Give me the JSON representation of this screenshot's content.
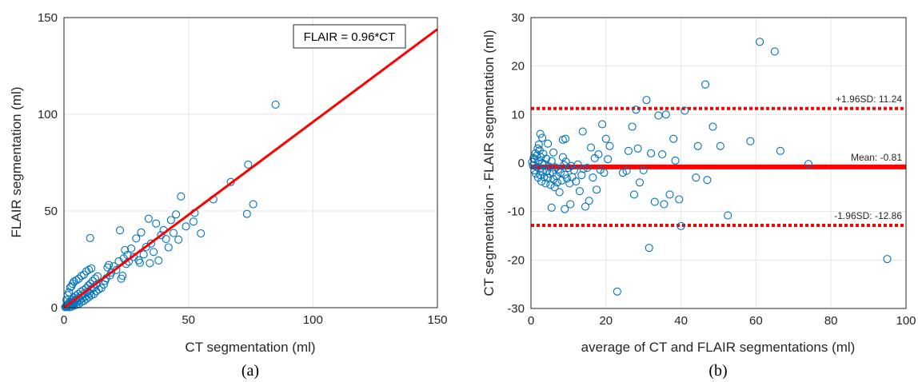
{
  "chart_data": [
    {
      "type": "scatter",
      "panel_label": "(a)",
      "xlabel": "CT segmentation (ml)",
      "ylabel": "FLAIR segmentation (ml)",
      "xlim": [
        0,
        150
      ],
      "ylim": [
        0,
        150
      ],
      "xticks": [
        "0",
        "50",
        "100",
        "150"
      ],
      "yticks": [
        "0",
        "50",
        "100",
        "150"
      ],
      "grid": true,
      "fit_line": {
        "slope": 0.96,
        "color": "#ff0000",
        "legend": "FLAIR = 0.96*CT"
      },
      "marker_color": "#0072bd",
      "points": [
        [
          0.5,
          0.3
        ],
        [
          0.8,
          0.6
        ],
        [
          1.0,
          1.2
        ],
        [
          1.2,
          0.5
        ],
        [
          1.5,
          1.8
        ],
        [
          1.8,
          0.9
        ],
        [
          2.0,
          2.5
        ],
        [
          2.2,
          1.4
        ],
        [
          2.5,
          3.2
        ],
        [
          2.8,
          1.9
        ],
        [
          3.0,
          2.6
        ],
        [
          3.2,
          4.0
        ],
        [
          3.5,
          1.5
        ],
        [
          3.8,
          3.1
        ],
        [
          4.0,
          5.2
        ],
        [
          4.2,
          2.4
        ],
        [
          4.5,
          3.8
        ],
        [
          4.8,
          6.1
        ],
        [
          5.0,
          4.4
        ],
        [
          5.3,
          2.9
        ],
        [
          5.6,
          7.0
        ],
        [
          6.0,
          5.1
        ],
        [
          6.3,
          3.7
        ],
        [
          6.7,
          8.2
        ],
        [
          7.0,
          6.3
        ],
        [
          7.4,
          4.9
        ],
        [
          7.8,
          9.1
        ],
        [
          8.2,
          7.4
        ],
        [
          8.6,
          5.8
        ],
        [
          9.0,
          10.2
        ],
        [
          9.4,
          8.3
        ],
        [
          9.8,
          11.5
        ],
        [
          10.2,
          7.2
        ],
        [
          10.6,
          12.4
        ],
        [
          11.0,
          9.6
        ],
        [
          11.5,
          13.8
        ],
        [
          12.0,
          10.4
        ],
        [
          12.5,
          15.1
        ],
        [
          13.0,
          11.9
        ],
        [
          13.5,
          16.2
        ],
        [
          1.0,
          4.0
        ],
        [
          1.5,
          6.5
        ],
        [
          2.0,
          8.0
        ],
        [
          2.5,
          10.5
        ],
        [
          3.0,
          11.0
        ],
        [
          3.5,
          12.3
        ],
        [
          4.0,
          13.5
        ],
        [
          5.0,
          14.2
        ],
        [
          6.0,
          15.0
        ],
        [
          7.0,
          16.4
        ],
        [
          8.0,
          17.1
        ],
        [
          9.0,
          18.8
        ],
        [
          10.0,
          19.6
        ],
        [
          11.0,
          20.3
        ],
        [
          10.5,
          36.0
        ],
        [
          2.0,
          0.2
        ],
        [
          3.0,
          0.5
        ],
        [
          4.0,
          1.0
        ],
        [
          5.0,
          1.5
        ],
        [
          6.0,
          2.0
        ],
        [
          7.0,
          3.0
        ],
        [
          8.0,
          3.5
        ],
        [
          9.0,
          4.5
        ],
        [
          10.0,
          5.5
        ],
        [
          11.0,
          6.5
        ],
        [
          12.0,
          7.0
        ],
        [
          13.0,
          8.5
        ],
        [
          14.0,
          9.5
        ],
        [
          15.0,
          10.2
        ],
        [
          16.0,
          12.0
        ],
        [
          16.5,
          13.8
        ],
        [
          17.0,
          15.2
        ],
        [
          17.5,
          20.8
        ],
        [
          18.0,
          22.1
        ],
        [
          18.5,
          16.7
        ],
        [
          19.0,
          18.2
        ],
        [
          20.0,
          21.4
        ],
        [
          21.0,
          19.5
        ],
        [
          22.0,
          24.0
        ],
        [
          22.5,
          40.0
        ],
        [
          23.0,
          15.0
        ],
        [
          23.5,
          16.5
        ],
        [
          24.0,
          25.5
        ],
        [
          24.5,
          29.8
        ],
        [
          25.0,
          22.6
        ],
        [
          25.5,
          27.3
        ],
        [
          26.0,
          23.8
        ],
        [
          27.0,
          30.6
        ],
        [
          28.0,
          26.2
        ],
        [
          29.0,
          35.8
        ],
        [
          30.0,
          24.5
        ],
        [
          30.5,
          23.2
        ],
        [
          31.0,
          38.9
        ],
        [
          32.0,
          27.5
        ],
        [
          33.0,
          31.4
        ],
        [
          34.0,
          46.0
        ],
        [
          34.5,
          23.0
        ],
        [
          35.0,
          33.2
        ],
        [
          36.0,
          28.8
        ],
        [
          37.0,
          43.5
        ],
        [
          38.0,
          24.4
        ],
        [
          39.0,
          37.5
        ],
        [
          40.0,
          40.1
        ],
        [
          41.0,
          35.5
        ],
        [
          42.0,
          31.2
        ],
        [
          43.0,
          45.3
        ],
        [
          44.0,
          38.6
        ],
        [
          45.0,
          48.2
        ],
        [
          46.0,
          35.2
        ],
        [
          47.0,
          57.5
        ],
        [
          49.0,
          42.0
        ],
        [
          52.0,
          44.5
        ],
        [
          52.5,
          49.0
        ],
        [
          55.0,
          38.4
        ],
        [
          60.0,
          56.0
        ],
        [
          67.0,
          65.0
        ],
        [
          73.5,
          48.5
        ],
        [
          74.0,
          74.0
        ],
        [
          76.0,
          53.5
        ],
        [
          85.0,
          105.0
        ]
      ]
    },
    {
      "type": "scatter",
      "panel_label": "(b)",
      "xlabel": "average of CT and FLAIR segmentations (ml)",
      "ylabel": "CT segmentation - FLAIR segmentation (ml)",
      "xlim": [
        0,
        100
      ],
      "ylim": [
        -30,
        30
      ],
      "xticks": [
        "0",
        "20",
        "40",
        "60",
        "80",
        "100"
      ],
      "yticks": [
        "-30",
        "-20",
        "-10",
        "0",
        "10",
        "20",
        "30"
      ],
      "grid": true,
      "marker_color": "#0072bd",
      "mean": {
        "value": -0.81,
        "label": "Mean: -0.81",
        "color": "#ff0000"
      },
      "upper_loa": {
        "value": 11.24,
        "label": "+1.96SD: 11.24",
        "color": "#ff0000"
      },
      "lower_loa": {
        "value": -12.86,
        "label": "-1.96SD: -12.86",
        "color": "#ff0000"
      },
      "points": [
        [
          0.3,
          0.2
        ],
        [
          0.5,
          -0.5
        ],
        [
          0.7,
          1.0
        ],
        [
          0.9,
          -1.5
        ],
        [
          1.0,
          0.8
        ],
        [
          1.2,
          2.0
        ],
        [
          1.3,
          -2.2
        ],
        [
          1.5,
          1.5
        ],
        [
          1.6,
          -0.8
        ],
        [
          1.8,
          3.0
        ],
        [
          1.9,
          -3.0
        ],
        [
          2.0,
          0.5
        ],
        [
          2.1,
          3.8
        ],
        [
          2.2,
          -1.2
        ],
        [
          2.3,
          2.6
        ],
        [
          2.5,
          -2.5
        ],
        [
          2.6,
          1.2
        ],
        [
          2.8,
          -3.8
        ],
        [
          3.0,
          0.0
        ],
        [
          3.1,
          -1.8
        ],
        [
          3.3,
          1.9
        ],
        [
          3.5,
          -2.9
        ],
        [
          3.7,
          -0.3
        ],
        [
          3.9,
          -4.2
        ],
        [
          4.1,
          0.9
        ],
        [
          4.3,
          -1.6
        ],
        [
          4.5,
          -3.1
        ],
        [
          4.8,
          -0.7
        ],
        [
          5.0,
          -2.2
        ],
        [
          5.2,
          -4.5
        ],
        [
          5.5,
          0.4
        ],
        [
          5.8,
          -1.9
        ],
        [
          6.0,
          -3.4
        ],
        [
          6.3,
          -5.0
        ],
        [
          6.5,
          -0.9
        ],
        [
          6.8,
          -2.7
        ],
        [
          7.0,
          -4.0
        ],
        [
          7.3,
          -1.3
        ],
        [
          7.6,
          -6.0
        ],
        [
          7.9,
          -2.0
        ],
        [
          8.2,
          -3.6
        ],
        [
          8.5,
          1.2
        ],
        [
          8.8,
          -0.4
        ],
        [
          9.0,
          -2.4
        ],
        [
          9.3,
          0.3
        ],
        [
          9.6,
          -3.2
        ],
        [
          10.0,
          -1.0
        ],
        [
          10.3,
          -4.2
        ],
        [
          10.7,
          -0.6
        ],
        [
          11.0,
          -2.9
        ],
        [
          11.5,
          -1.5
        ],
        [
          12.0,
          -3.8
        ],
        [
          12.5,
          -0.3
        ],
        [
          13.0,
          -5.8
        ],
        [
          13.5,
          -2.5
        ],
        [
          14.0,
          -1.2
        ],
        [
          14.5,
          -9.0
        ],
        [
          15.0,
          -1.0
        ],
        [
          15.5,
          -7.8
        ],
        [
          16.0,
          3.2
        ],
        [
          16.5,
          -3.0
        ],
        [
          17.0,
          1.0
        ],
        [
          17.5,
          -5.5
        ],
        [
          18.0,
          1.8
        ],
        [
          18.5,
          -1.4
        ],
        [
          19.0,
          8.0
        ],
        [
          19.5,
          -2.0
        ],
        [
          20.0,
          5.0
        ],
        [
          20.5,
          0.8
        ],
        [
          21.0,
          3.5
        ],
        [
          2.5,
          6.0
        ],
        [
          3.0,
          5.2
        ],
        [
          4.5,
          4.0
        ],
        [
          6.0,
          2.2
        ],
        [
          8.5,
          4.8
        ],
        [
          9.2,
          5.0
        ],
        [
          13.8,
          6.5
        ],
        [
          5.5,
          -9.2
        ],
        [
          9.0,
          -9.5
        ],
        [
          10.5,
          -8.5
        ],
        [
          23.0,
          -26.5
        ],
        [
          24.5,
          -2.0
        ],
        [
          25.5,
          -1.6
        ],
        [
          26.0,
          2.5
        ],
        [
          27.0,
          7.5
        ],
        [
          27.5,
          -6.5
        ],
        [
          28.0,
          11.0
        ],
        [
          28.5,
          3.0
        ],
        [
          29.0,
          -4.0
        ],
        [
          30.0,
          -1.5
        ],
        [
          30.8,
          13.0
        ],
        [
          31.5,
          -17.5
        ],
        [
          32.0,
          2.0
        ],
        [
          33.0,
          -8.0
        ],
        [
          34.0,
          9.8
        ],
        [
          35.0,
          1.8
        ],
        [
          35.5,
          -8.5
        ],
        [
          36.0,
          10.0
        ],
        [
          37.0,
          -6.5
        ],
        [
          38.0,
          5.0
        ],
        [
          38.5,
          0.5
        ],
        [
          39.5,
          -7.5
        ],
        [
          40.0,
          -13.0
        ],
        [
          41.0,
          10.8
        ],
        [
          44.0,
          -3.0
        ],
        [
          44.5,
          3.5
        ],
        [
          46.5,
          16.2
        ],
        [
          47.0,
          -3.5
        ],
        [
          48.5,
          7.5
        ],
        [
          50.5,
          3.5
        ],
        [
          52.5,
          -10.8
        ],
        [
          58.5,
          4.5
        ],
        [
          61.0,
          25.0
        ],
        [
          65.0,
          23.0
        ],
        [
          66.5,
          2.5
        ],
        [
          74.0,
          -0.2
        ],
        [
          95.0,
          -19.8
        ]
      ]
    }
  ]
}
